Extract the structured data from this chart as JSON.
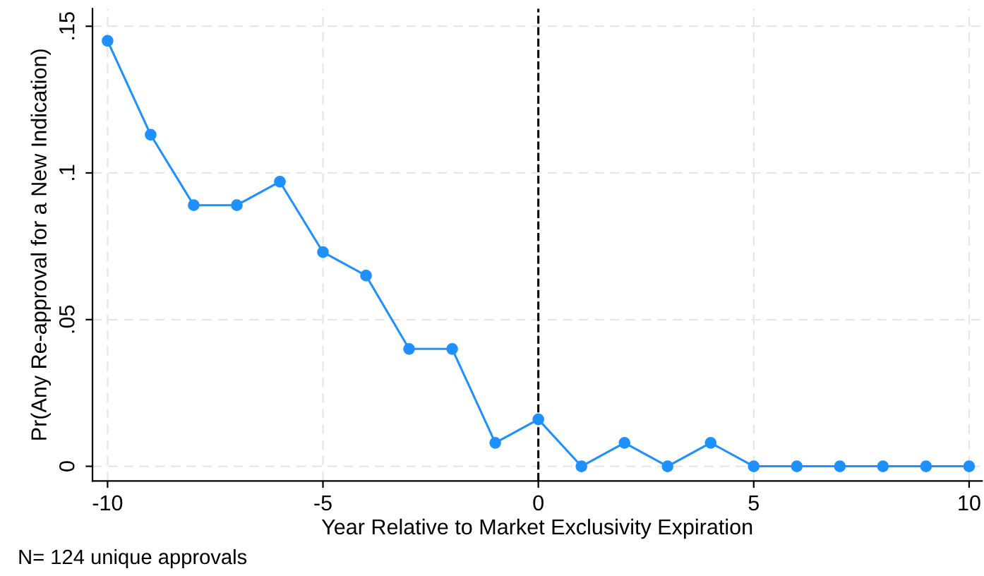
{
  "chart_data": {
    "type": "line",
    "xlabel": "Year Relative to Market Exclusivity Expiration",
    "ylabel": "Pr(Any Re-approval for a New Indication)",
    "x": [
      -10,
      -9,
      -8,
      -7,
      -6,
      -5,
      -4,
      -3,
      -2,
      -1,
      0,
      1,
      2,
      3,
      4,
      5,
      6,
      7,
      8,
      9,
      10
    ],
    "series": [
      {
        "color": "#1e90ff",
        "values": [
          0.145,
          0.113,
          0.089,
          0.089,
          0.097,
          0.073,
          0.065,
          0.04,
          0.04,
          0.008,
          0.016,
          0,
          0.008,
          0,
          0.008,
          0,
          0,
          0,
          0,
          0,
          0
        ]
      }
    ],
    "xlim": [
      -10.35,
      10.3
    ],
    "ylim": [
      -0.005,
      0.156
    ],
    "xticks": [
      -10,
      -5,
      0,
      5,
      10
    ],
    "yticks": [
      {
        "value": 0,
        "label": "0"
      },
      {
        "value": 0.05,
        "label": ".05"
      },
      {
        "value": 0.1,
        "label": ".1"
      },
      {
        "value": 0.15,
        "label": ".15"
      }
    ],
    "ref_lines": [
      {
        "axis": "x",
        "value": 0,
        "color": "#000000",
        "line_style": "dashed"
      }
    ],
    "grid": true,
    "marker": "circle",
    "line_style": "solid",
    "annotations": [
      "N= 124 unique approvals"
    ]
  }
}
